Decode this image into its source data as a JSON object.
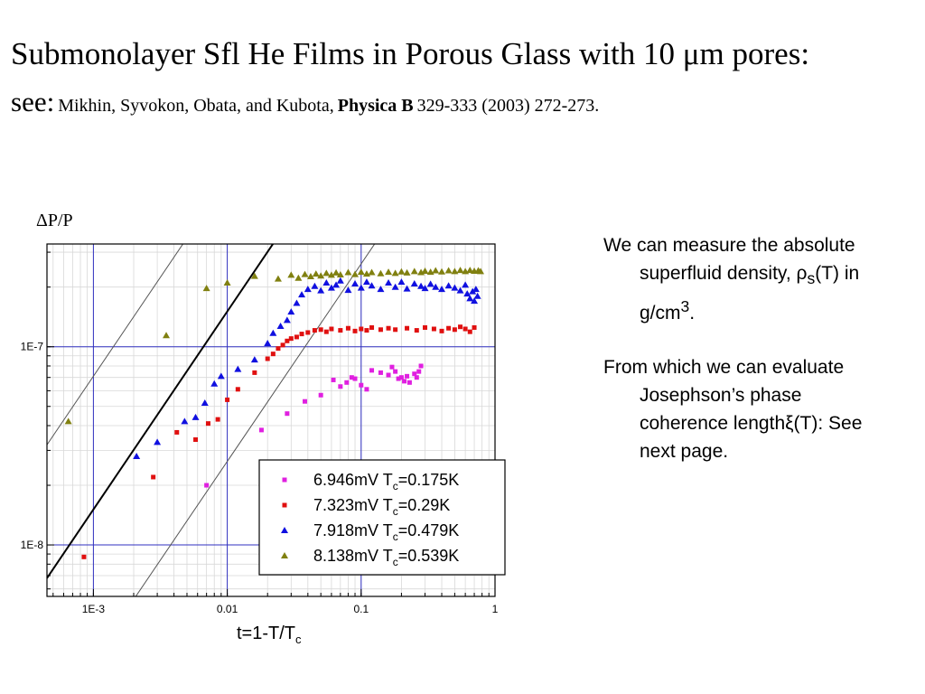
{
  "slide": {
    "title": "Submonolayer Sfl He Films in Porous Glass with 10 μm pores:",
    "citation": {
      "see": "see:",
      "authors": "Mikhin, Syvokon, Obata, and Kubota,",
      "journal": "Physica B",
      "details": "329-333 (2003) 272-273."
    },
    "text1": {
      "main": "We can measure the absolute superfluid density, ρ",
      "sub": "s",
      "mid": "(T) in g/cm",
      "sup": "3",
      "end": "."
    },
    "text2": "From which we can evaluate Josephson’s phase coherence lengthξ(T): See next page."
  },
  "chart_data": {
    "type": "scatter",
    "ylabel": "ΔP/P",
    "xlabel_main": "t=1-T/T",
    "xlabel_sub": "c",
    "x_scale": "log",
    "y_scale": "log",
    "xlim": [
      0.00045,
      1.0
    ],
    "ylim": [
      5.5e-09,
      3.3e-07
    ],
    "x_ticks": [
      {
        "value": 0.001,
        "label": "1E-3"
      },
      {
        "value": 0.01,
        "label": "0.01"
      },
      {
        "value": 0.1,
        "label": "0.1"
      },
      {
        "value": 1,
        "label": "1"
      }
    ],
    "y_ticks": [
      {
        "value": 1e-07,
        "label": "1E-7"
      },
      {
        "value": 1e-08,
        "label": "1E-8"
      }
    ],
    "grid": true,
    "legend_position": "bottom-right",
    "series": [
      {
        "name_main": "6.946mV T",
        "name_sub": "c",
        "name_end": "=0.175K",
        "color": "#e020e0",
        "marker": "square",
        "points": [
          [
            0.007,
            2e-08
          ],
          [
            0.018,
            3.8e-08
          ],
          [
            0.028,
            4.6e-08
          ],
          [
            0.038,
            5.3e-08
          ],
          [
            0.05,
            5.7e-08
          ],
          [
            0.062,
            6.8e-08
          ],
          [
            0.07,
            6.3e-08
          ],
          [
            0.078,
            6.6e-08
          ],
          [
            0.085,
            7e-08
          ],
          [
            0.09,
            6.9e-08
          ],
          [
            0.1,
            6.4e-08
          ],
          [
            0.11,
            6.1e-08
          ],
          [
            0.12,
            7.6e-08
          ],
          [
            0.14,
            7.4e-08
          ],
          [
            0.16,
            7.2e-08
          ],
          [
            0.17,
            7.9e-08
          ],
          [
            0.18,
            7.5e-08
          ],
          [
            0.19,
            6.9e-08
          ],
          [
            0.2,
            7e-08
          ],
          [
            0.21,
            6.7e-08
          ],
          [
            0.22,
            7.1e-08
          ],
          [
            0.23,
            6.6e-08
          ],
          [
            0.25,
            7.3e-08
          ],
          [
            0.26,
            7e-08
          ],
          [
            0.27,
            7.5e-08
          ],
          [
            0.28,
            8e-08
          ]
        ]
      },
      {
        "name_main": "7.323mV T",
        "name_sub": "c",
        "name_end": "=0.29K",
        "color": "#e01010",
        "marker": "square",
        "points": [
          [
            0.00085,
            8.7e-09
          ],
          [
            0.0028,
            2.2e-08
          ],
          [
            0.0042,
            3.7e-08
          ],
          [
            0.0058,
            3.4e-08
          ],
          [
            0.0072,
            4.1e-08
          ],
          [
            0.0085,
            4.3e-08
          ],
          [
            0.01,
            5.4e-08
          ],
          [
            0.012,
            6.1e-08
          ],
          [
            0.016,
            7.4e-08
          ],
          [
            0.02,
            8.7e-08
          ],
          [
            0.022,
            9.2e-08
          ],
          [
            0.024,
            9.8e-08
          ],
          [
            0.026,
            1.02e-07
          ],
          [
            0.028,
            1.07e-07
          ],
          [
            0.03,
            1.1e-07
          ],
          [
            0.033,
            1.12e-07
          ],
          [
            0.036,
            1.16e-07
          ],
          [
            0.04,
            1.18e-07
          ],
          [
            0.045,
            1.21e-07
          ],
          [
            0.05,
            1.22e-07
          ],
          [
            0.055,
            1.19e-07
          ],
          [
            0.06,
            1.23e-07
          ],
          [
            0.07,
            1.21e-07
          ],
          [
            0.08,
            1.24e-07
          ],
          [
            0.09,
            1.2e-07
          ],
          [
            0.1,
            1.23e-07
          ],
          [
            0.11,
            1.21e-07
          ],
          [
            0.12,
            1.25e-07
          ],
          [
            0.14,
            1.22e-07
          ],
          [
            0.16,
            1.24e-07
          ],
          [
            0.18,
            1.22e-07
          ],
          [
            0.22,
            1.24e-07
          ],
          [
            0.26,
            1.21e-07
          ],
          [
            0.3,
            1.25e-07
          ],
          [
            0.35,
            1.23e-07
          ],
          [
            0.4,
            1.2e-07
          ],
          [
            0.45,
            1.24e-07
          ],
          [
            0.5,
            1.22e-07
          ],
          [
            0.55,
            1.26e-07
          ],
          [
            0.6,
            1.23e-07
          ],
          [
            0.65,
            1.19e-07
          ],
          [
            0.7,
            1.25e-07
          ]
        ]
      },
      {
        "name_main": "7.918mV T",
        "name_sub": "c",
        "name_end": "=0.479K",
        "color": "#1010e0",
        "marker": "triangle",
        "points": [
          [
            0.0021,
            2.8e-08
          ],
          [
            0.003,
            3.3e-08
          ],
          [
            0.0048,
            4.2e-08
          ],
          [
            0.0058,
            4.4e-08
          ],
          [
            0.0068,
            5.2e-08
          ],
          [
            0.008,
            6.5e-08
          ],
          [
            0.009,
            7.1e-08
          ],
          [
            0.012,
            7.7e-08
          ],
          [
            0.016,
            8.6e-08
          ],
          [
            0.02,
            1.04e-07
          ],
          [
            0.022,
            1.17e-07
          ],
          [
            0.025,
            1.27e-07
          ],
          [
            0.028,
            1.36e-07
          ],
          [
            0.03,
            1.5e-07
          ],
          [
            0.033,
            1.66e-07
          ],
          [
            0.036,
            1.83e-07
          ],
          [
            0.04,
            1.95e-07
          ],
          [
            0.045,
            2.02e-07
          ],
          [
            0.05,
            1.92e-07
          ],
          [
            0.055,
            2.1e-07
          ],
          [
            0.06,
            1.98e-07
          ],
          [
            0.065,
            2.05e-07
          ],
          [
            0.07,
            2.15e-07
          ],
          [
            0.08,
            1.93e-07
          ],
          [
            0.09,
            2.08e-07
          ],
          [
            0.1,
            1.98e-07
          ],
          [
            0.11,
            2.12e-07
          ],
          [
            0.12,
            2.03e-07
          ],
          [
            0.14,
            1.95e-07
          ],
          [
            0.16,
            2.1e-07
          ],
          [
            0.18,
            2e-07
          ],
          [
            0.2,
            2.12e-07
          ],
          [
            0.22,
            1.96e-07
          ],
          [
            0.25,
            2.08e-07
          ],
          [
            0.28,
            2.02e-07
          ],
          [
            0.3,
            1.97e-07
          ],
          [
            0.33,
            2.07e-07
          ],
          [
            0.36,
            2e-07
          ],
          [
            0.4,
            1.95e-07
          ],
          [
            0.45,
            2.03e-07
          ],
          [
            0.5,
            1.98e-07
          ],
          [
            0.55,
            1.92e-07
          ],
          [
            0.6,
            2.05e-07
          ],
          [
            0.62,
            1.85e-07
          ],
          [
            0.65,
            1.75e-07
          ],
          [
            0.68,
            1.9e-07
          ],
          [
            0.7,
            1.7e-07
          ],
          [
            0.72,
            1.95e-07
          ],
          [
            0.74,
            1.8e-07
          ]
        ]
      },
      {
        "name_main": "8.138mV T",
        "name_sub": "c",
        "name_end": "=0.539K",
        "color": "#808010",
        "marker": "triangle",
        "points": [
          [
            0.00065,
            4.2e-08
          ],
          [
            0.0035,
            1.14e-07
          ],
          [
            0.007,
            1.97e-07
          ],
          [
            0.01,
            2.1e-07
          ],
          [
            0.016,
            2.27e-07
          ],
          [
            0.024,
            2.2e-07
          ],
          [
            0.03,
            2.3e-07
          ],
          [
            0.034,
            2.22e-07
          ],
          [
            0.038,
            2.32e-07
          ],
          [
            0.042,
            2.26e-07
          ],
          [
            0.046,
            2.33e-07
          ],
          [
            0.05,
            2.28e-07
          ],
          [
            0.055,
            2.35e-07
          ],
          [
            0.06,
            2.3e-07
          ],
          [
            0.065,
            2.36e-07
          ],
          [
            0.07,
            2.31e-07
          ],
          [
            0.08,
            2.37e-07
          ],
          [
            0.09,
            2.32e-07
          ],
          [
            0.1,
            2.38e-07
          ],
          [
            0.11,
            2.33e-07
          ],
          [
            0.12,
            2.37e-07
          ],
          [
            0.14,
            2.34e-07
          ],
          [
            0.16,
            2.38e-07
          ],
          [
            0.18,
            2.35e-07
          ],
          [
            0.2,
            2.39e-07
          ],
          [
            0.22,
            2.36e-07
          ],
          [
            0.25,
            2.4e-07
          ],
          [
            0.28,
            2.37e-07
          ],
          [
            0.3,
            2.41e-07
          ],
          [
            0.33,
            2.38e-07
          ],
          [
            0.36,
            2.42e-07
          ],
          [
            0.4,
            2.39e-07
          ],
          [
            0.45,
            2.42e-07
          ],
          [
            0.5,
            2.4e-07
          ],
          [
            0.55,
            2.43e-07
          ],
          [
            0.6,
            2.4e-07
          ],
          [
            0.65,
            2.43e-07
          ],
          [
            0.7,
            2.41e-07
          ],
          [
            0.75,
            2.42e-07
          ],
          [
            0.78,
            2.4e-07
          ]
        ]
      }
    ]
  }
}
